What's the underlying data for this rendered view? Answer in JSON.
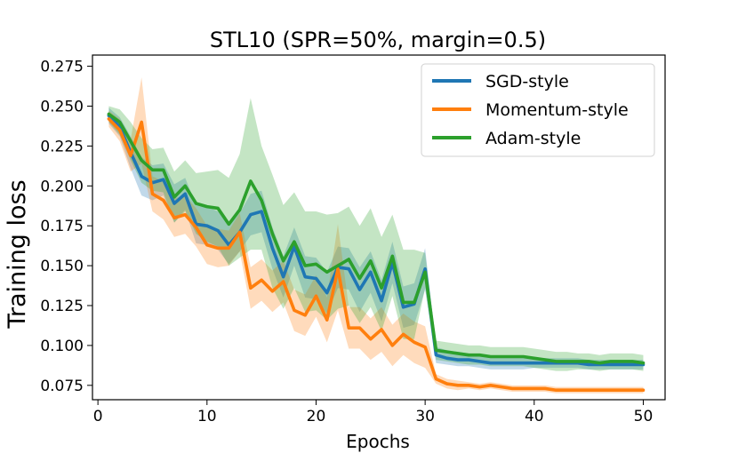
{
  "chart_data": {
    "type": "line",
    "title": "STL10 (SPR=50%, margin=0.5)",
    "xlabel": "Epochs",
    "ylabel": "Training loss",
    "xlim": [
      -0.5,
      52
    ],
    "ylim": [
      0.066,
      0.282
    ],
    "xticks": [
      0,
      10,
      20,
      30,
      40,
      50
    ],
    "yticks": [
      0.075,
      0.1,
      0.125,
      0.15,
      0.175,
      0.2,
      0.225,
      0.25,
      0.275
    ],
    "legend_position": "top-right",
    "grid": false,
    "x": [
      1,
      2,
      3,
      4,
      5,
      6,
      7,
      8,
      9,
      10,
      11,
      12,
      13,
      14,
      15,
      16,
      17,
      18,
      19,
      20,
      21,
      22,
      23,
      24,
      25,
      26,
      27,
      28,
      29,
      30,
      31,
      32,
      33,
      34,
      35,
      36,
      37,
      38,
      39,
      40,
      41,
      42,
      43,
      44,
      45,
      46,
      47,
      48,
      49,
      50
    ],
    "series": [
      {
        "name": "SGD-style",
        "color": "#1f77b4",
        "values": [
          0.244,
          0.237,
          0.221,
          0.206,
          0.202,
          0.204,
          0.189,
          0.195,
          0.176,
          0.175,
          0.172,
          0.163,
          0.171,
          0.182,
          0.184,
          0.161,
          0.143,
          0.162,
          0.143,
          0.142,
          0.133,
          0.149,
          0.148,
          0.135,
          0.146,
          0.128,
          0.152,
          0.124,
          0.126,
          0.148,
          0.094,
          0.092,
          0.091,
          0.091,
          0.09,
          0.089,
          0.089,
          0.089,
          0.089,
          0.089,
          0.089,
          0.089,
          0.089,
          0.089,
          0.088,
          0.088,
          0.088,
          0.088,
          0.088,
          0.088
        ],
        "band_upper": [
          0.249,
          0.243,
          0.231,
          0.218,
          0.213,
          0.214,
          0.201,
          0.205,
          0.188,
          0.187,
          0.184,
          0.175,
          0.183,
          0.195,
          0.197,
          0.174,
          0.156,
          0.174,
          0.156,
          0.155,
          0.146,
          0.162,
          0.161,
          0.149,
          0.159,
          0.141,
          0.165,
          0.137,
          0.139,
          0.161,
          0.099,
          0.097,
          0.096,
          0.095,
          0.094,
          0.093,
          0.093,
          0.093,
          0.093,
          0.092,
          0.092,
          0.092,
          0.092,
          0.092,
          0.091,
          0.091,
          0.091,
          0.091,
          0.091,
          0.091
        ],
        "band_lower": [
          0.239,
          0.231,
          0.211,
          0.194,
          0.191,
          0.194,
          0.177,
          0.185,
          0.164,
          0.163,
          0.16,
          0.151,
          0.159,
          0.169,
          0.171,
          0.148,
          0.13,
          0.15,
          0.13,
          0.129,
          0.12,
          0.136,
          0.135,
          0.121,
          0.133,
          0.115,
          0.139,
          0.111,
          0.113,
          0.135,
          0.089,
          0.088,
          0.087,
          0.087,
          0.086,
          0.085,
          0.085,
          0.085,
          0.085,
          0.086,
          0.086,
          0.086,
          0.086,
          0.086,
          0.085,
          0.085,
          0.085,
          0.085,
          0.085,
          0.085
        ]
      },
      {
        "name": "Momentum-style",
        "color": "#ff7f0e",
        "values": [
          0.242,
          0.235,
          0.219,
          0.24,
          0.195,
          0.191,
          0.18,
          0.182,
          0.174,
          0.163,
          0.161,
          0.161,
          0.171,
          0.136,
          0.141,
          0.134,
          0.14,
          0.122,
          0.119,
          0.131,
          0.116,
          0.148,
          0.111,
          0.111,
          0.104,
          0.11,
          0.1,
          0.107,
          0.102,
          0.099,
          0.079,
          0.076,
          0.075,
          0.075,
          0.074,
          0.075,
          0.074,
          0.073,
          0.073,
          0.073,
          0.073,
          0.072,
          0.072,
          0.072,
          0.072,
          0.072,
          0.072,
          0.072,
          0.072,
          0.072
        ],
        "band_upper": [
          0.247,
          0.242,
          0.229,
          0.268,
          0.206,
          0.203,
          0.192,
          0.194,
          0.186,
          0.175,
          0.173,
          0.172,
          0.183,
          0.149,
          0.154,
          0.147,
          0.153,
          0.135,
          0.132,
          0.144,
          0.13,
          0.176,
          0.124,
          0.124,
          0.117,
          0.124,
          0.113,
          0.12,
          0.115,
          0.112,
          0.082,
          0.079,
          0.078,
          0.077,
          0.076,
          0.077,
          0.076,
          0.075,
          0.075,
          0.075,
          0.075,
          0.074,
          0.074,
          0.074,
          0.074,
          0.074,
          0.074,
          0.074,
          0.074,
          0.074
        ],
        "band_lower": [
          0.237,
          0.228,
          0.209,
          0.214,
          0.184,
          0.179,
          0.168,
          0.17,
          0.162,
          0.151,
          0.149,
          0.15,
          0.159,
          0.123,
          0.128,
          0.121,
          0.127,
          0.109,
          0.106,
          0.118,
          0.102,
          0.122,
          0.098,
          0.098,
          0.091,
          0.096,
          0.087,
          0.094,
          0.089,
          0.086,
          0.076,
          0.073,
          0.072,
          0.073,
          0.072,
          0.073,
          0.072,
          0.071,
          0.071,
          0.071,
          0.071,
          0.07,
          0.07,
          0.07,
          0.07,
          0.07,
          0.07,
          0.07,
          0.07,
          0.07
        ]
      },
      {
        "name": "Adam-style",
        "color": "#2ca02c",
        "values": [
          0.245,
          0.24,
          0.228,
          0.216,
          0.21,
          0.21,
          0.193,
          0.2,
          0.189,
          0.187,
          0.186,
          0.176,
          0.185,
          0.203,
          0.191,
          0.17,
          0.153,
          0.165,
          0.15,
          0.151,
          0.146,
          0.15,
          0.154,
          0.142,
          0.153,
          0.136,
          0.156,
          0.127,
          0.127,
          0.146,
          0.097,
          0.096,
          0.095,
          0.094,
          0.094,
          0.093,
          0.093,
          0.093,
          0.093,
          0.092,
          0.091,
          0.09,
          0.09,
          0.09,
          0.09,
          0.089,
          0.09,
          0.09,
          0.09,
          0.089
        ],
        "band_upper": [
          0.25,
          0.248,
          0.24,
          0.23,
          0.223,
          0.224,
          0.209,
          0.216,
          0.208,
          0.209,
          0.21,
          0.205,
          0.22,
          0.255,
          0.225,
          0.207,
          0.188,
          0.196,
          0.184,
          0.184,
          0.182,
          0.183,
          0.187,
          0.175,
          0.186,
          0.168,
          0.182,
          0.16,
          0.16,
          0.158,
          0.103,
          0.102,
          0.101,
          0.1,
          0.1,
          0.099,
          0.099,
          0.099,
          0.099,
          0.098,
          0.097,
          0.096,
          0.096,
          0.095,
          0.095,
          0.094,
          0.095,
          0.095,
          0.095,
          0.094
        ],
        "band_lower": [
          0.24,
          0.232,
          0.216,
          0.202,
          0.197,
          0.196,
          0.177,
          0.184,
          0.17,
          0.165,
          0.162,
          0.15,
          0.155,
          0.16,
          0.16,
          0.136,
          0.123,
          0.136,
          0.121,
          0.122,
          0.116,
          0.123,
          0.125,
          0.114,
          0.124,
          0.109,
          0.131,
          0.104,
          0.104,
          0.136,
          0.091,
          0.09,
          0.089,
          0.088,
          0.088,
          0.087,
          0.087,
          0.087,
          0.087,
          0.086,
          0.085,
          0.084,
          0.084,
          0.085,
          0.085,
          0.084,
          0.085,
          0.085,
          0.085,
          0.084
        ]
      }
    ]
  }
}
